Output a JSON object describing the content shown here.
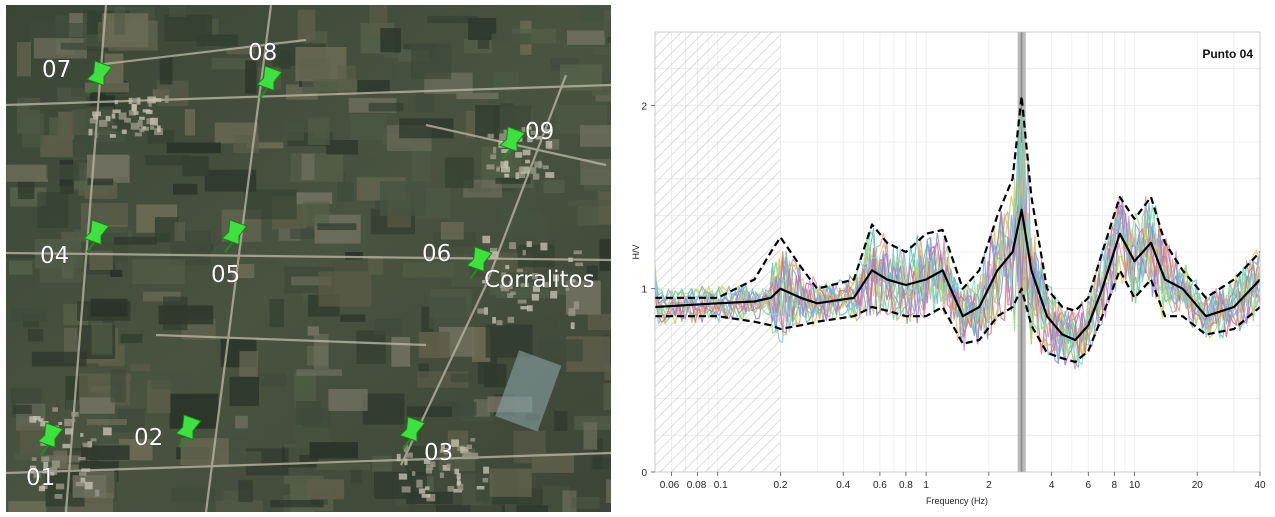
{
  "map": {
    "markers": [
      {
        "label": "01"
      },
      {
        "label": "02"
      },
      {
        "label": "03"
      },
      {
        "label": "04"
      },
      {
        "label": "05"
      },
      {
        "label": "06"
      },
      {
        "label": "07"
      },
      {
        "label": "08"
      },
      {
        "label": "09"
      }
    ],
    "place_label": "Corralitos",
    "marker_color": "#3ee23e"
  },
  "chart_data": {
    "type": "line",
    "title": "Punto 04",
    "xlabel": "Frequency (Hz)",
    "ylabel": "H/V",
    "xscale": "log",
    "xlim": [
      0.05,
      40
    ],
    "ylim": [
      0,
      2.4
    ],
    "x_ticks": [
      "0.06",
      "0.08",
      "0.1",
      "0.2",
      "0.4",
      "0.6",
      "0.8",
      "1",
      "2",
      "4",
      "6",
      "8",
      "10",
      "20",
      "40"
    ],
    "y_ticks": [
      "0",
      "1",
      "2"
    ],
    "grid": true,
    "hatched_region": {
      "from": 0.05,
      "to": 0.2
    },
    "peak_band": {
      "from": 2.75,
      "to": 3.0
    },
    "peak_frequency": 2.87,
    "mean_curve": {
      "name": "average H/V",
      "x": [
        0.05,
        0.1,
        0.15,
        0.18,
        0.2,
        0.25,
        0.3,
        0.45,
        0.55,
        0.65,
        0.8,
        1.0,
        1.2,
        1.5,
        1.8,
        2.2,
        2.6,
        2.87,
        3.2,
        3.8,
        4.5,
        5.2,
        6.0,
        7.0,
        8.5,
        10.0,
        12.0,
        14.0,
        17.0,
        22.0,
        30.0,
        40.0
      ],
      "y": [
        0.9,
        0.92,
        0.93,
        0.95,
        1.0,
        0.95,
        0.92,
        0.95,
        1.1,
        1.05,
        1.02,
        1.05,
        1.1,
        0.85,
        0.9,
        1.1,
        1.2,
        1.43,
        1.1,
        0.85,
        0.75,
        0.72,
        0.8,
        1.0,
        1.3,
        1.15,
        1.25,
        1.05,
        1.0,
        0.85,
        0.9,
        1.05
      ]
    },
    "upper_std_curve": {
      "name": "mean + std",
      "x": [
        0.05,
        0.1,
        0.15,
        0.18,
        0.2,
        0.25,
        0.3,
        0.45,
        0.55,
        0.65,
        0.8,
        1.0,
        1.2,
        1.5,
        1.8,
        2.2,
        2.6,
        2.87,
        3.2,
        3.8,
        4.5,
        5.2,
        6.0,
        7.0,
        8.5,
        10.0,
        12.0,
        14.0,
        17.0,
        22.0,
        30.0,
        40.0
      ],
      "y": [
        0.95,
        0.95,
        1.05,
        1.2,
        1.28,
        1.12,
        1.0,
        1.05,
        1.35,
        1.25,
        1.2,
        1.3,
        1.32,
        1.0,
        1.1,
        1.4,
        1.6,
        2.05,
        1.5,
        1.0,
        0.9,
        0.88,
        0.95,
        1.2,
        1.5,
        1.38,
        1.5,
        1.25,
        1.1,
        0.95,
        1.05,
        1.2
      ]
    },
    "lower_std_curve": {
      "name": "mean - std",
      "x": [
        0.05,
        0.1,
        0.15,
        0.18,
        0.2,
        0.25,
        0.3,
        0.45,
        0.55,
        0.65,
        0.8,
        1.0,
        1.2,
        1.5,
        1.8,
        2.2,
        2.6,
        2.87,
        3.2,
        3.8,
        4.5,
        5.2,
        6.0,
        7.0,
        8.5,
        10.0,
        12.0,
        14.0,
        17.0,
        22.0,
        30.0,
        40.0
      ],
      "y": [
        0.85,
        0.85,
        0.82,
        0.8,
        0.78,
        0.8,
        0.82,
        0.85,
        0.9,
        0.88,
        0.85,
        0.85,
        0.9,
        0.7,
        0.72,
        0.85,
        0.9,
        1.0,
        0.8,
        0.65,
        0.62,
        0.6,
        0.66,
        0.85,
        1.1,
        0.95,
        1.05,
        0.85,
        0.85,
        0.75,
        0.78,
        0.9
      ]
    },
    "window_curve_colors": [
      "#7cc8e8",
      "#c890e0",
      "#f0c060",
      "#70d8a0",
      "#e890b0",
      "#a0e070",
      "#9090e0",
      "#f0a070",
      "#60c0c0",
      "#d0d050",
      "#b070d0",
      "#70b0f0",
      "#e07080",
      "#80e0c0"
    ],
    "colors": {
      "mean": "#000000",
      "std": "#000000",
      "peak_band": "#a0a0a0",
      "hatch": "#c8c8c8"
    }
  }
}
